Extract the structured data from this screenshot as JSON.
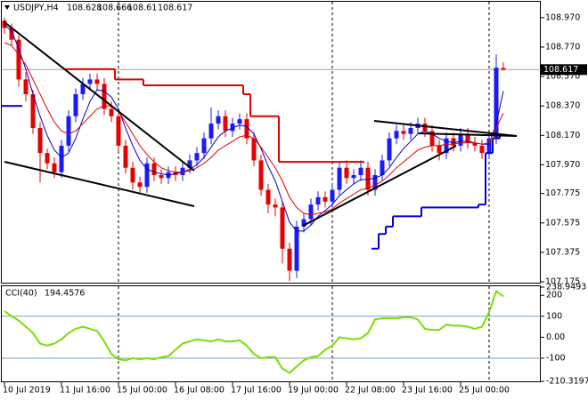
{
  "chart_data": {
    "type": "candlestick",
    "symbol": "USDJPY,H4",
    "categories": [
      "10 Jul 2019",
      null,
      null,
      null,
      null,
      null,
      null,
      null,
      "11 Jul 16:00",
      null,
      null,
      null,
      null,
      null,
      null,
      null,
      "15 Jul 00:00",
      null,
      null,
      null,
      null,
      null,
      null,
      null,
      "16 Jul 08:00",
      null,
      null,
      null,
      null,
      null,
      null,
      null,
      "17 Jul 16:00",
      null,
      null,
      null,
      null,
      null,
      null,
      null,
      "19 Jul 00:00",
      null,
      null,
      null,
      null,
      null,
      null,
      null,
      "22 Jul 08:00",
      null,
      null,
      null,
      null,
      null,
      null,
      null,
      "23 Jul 16:00",
      null,
      null,
      null,
      null,
      null,
      null,
      null,
      "25 Jul 00:00",
      null,
      null,
      null,
      null,
      null,
      null
    ],
    "open": [
      108.95,
      108.9,
      108.82,
      108.55,
      108.45,
      108.22,
      108.05,
      107.98,
      107.92,
      108.1,
      108.3,
      108.45,
      108.52,
      108.55,
      108.52,
      108.35,
      108.3,
      108.1,
      107.95,
      107.85,
      107.82,
      107.98,
      107.9,
      107.88,
      107.92,
      107.9,
      107.95,
      108.0,
      108.05,
      108.15,
      108.25,
      108.3,
      108.2,
      108.25,
      108.28,
      108.15,
      108.0,
      107.8,
      107.7,
      107.68,
      107.4,
      107.25,
      107.55,
      107.6,
      107.7,
      107.75,
      107.72,
      107.8,
      107.95,
      107.88,
      107.9,
      107.95,
      107.8,
      107.9,
      108.0,
      108.15,
      108.2,
      108.18,
      108.22,
      108.25,
      108.2,
      108.1,
      108.05,
      108.15,
      108.1,
      108.18,
      108.12,
      108.1,
      108.05,
      108.15,
      108.628
    ],
    "high": [
      108.97,
      108.93,
      108.85,
      108.6,
      108.48,
      108.26,
      108.08,
      108.02,
      108.14,
      108.34,
      108.49,
      108.56,
      108.59,
      108.59,
      108.56,
      108.4,
      108.34,
      108.14,
      107.99,
      107.89,
      108.02,
      108.02,
      107.94,
      107.96,
      107.96,
      107.99,
      108.04,
      108.09,
      108.19,
      108.36,
      108.34,
      108.34,
      108.29,
      108.32,
      108.32,
      108.19,
      108.04,
      107.84,
      107.74,
      107.72,
      107.44,
      107.59,
      107.64,
      107.74,
      107.79,
      107.79,
      107.84,
      107.99,
      108.0,
      107.94,
      108.0,
      107.99,
      107.94,
      108.04,
      108.19,
      108.24,
      108.24,
      108.26,
      108.29,
      108.29,
      108.24,
      108.14,
      108.19,
      108.19,
      108.22,
      108.22,
      108.16,
      108.14,
      108.19,
      108.72,
      108.666
    ],
    "low": [
      108.86,
      108.78,
      108.5,
      108.4,
      108.18,
      107.85,
      107.94,
      107.88,
      107.88,
      108.06,
      108.26,
      108.41,
      108.48,
      108.48,
      108.31,
      108.26,
      108.06,
      107.91,
      107.8,
      107.78,
      107.78,
      107.86,
      107.84,
      107.84,
      107.86,
      107.86,
      107.91,
      107.96,
      108.01,
      108.11,
      108.21,
      108.16,
      108.16,
      108.21,
      108.11,
      107.96,
      107.76,
      107.64,
      107.62,
      107.3,
      107.18,
      107.2,
      107.51,
      107.56,
      107.66,
      107.68,
      107.68,
      107.76,
      107.84,
      107.84,
      107.86,
      107.76,
      107.76,
      107.86,
      107.96,
      108.11,
      108.14,
      108.14,
      108.18,
      108.16,
      108.06,
      108.0,
      108.01,
      108.06,
      108.06,
      108.08,
      108.06,
      108.01,
      108.01,
      108.11,
      108.61
    ],
    "close": [
      108.9,
      108.82,
      108.55,
      108.45,
      108.22,
      108.05,
      107.98,
      107.92,
      108.1,
      108.3,
      108.45,
      108.52,
      108.55,
      108.52,
      108.35,
      108.3,
      108.1,
      107.95,
      107.85,
      107.82,
      107.98,
      107.9,
      107.88,
      107.92,
      107.9,
      107.95,
      108.0,
      108.05,
      108.15,
      108.25,
      108.3,
      108.2,
      108.25,
      108.28,
      108.15,
      108.0,
      107.8,
      107.7,
      107.68,
      107.4,
      107.25,
      107.55,
      107.6,
      107.7,
      107.75,
      107.72,
      107.8,
      107.95,
      107.88,
      107.9,
      107.95,
      107.8,
      107.9,
      108.0,
      108.15,
      108.2,
      108.18,
      108.22,
      108.25,
      108.2,
      108.1,
      108.05,
      108.15,
      108.1,
      108.18,
      108.12,
      108.1,
      108.05,
      108.15,
      108.63,
      108.617
    ],
    "up_color": "#1a1aff",
    "down_color": "#e60000",
    "ylim": [
      107.169,
      109.09
    ],
    "yticks": [
      {
        "value": 108.97,
        "label": "108.970"
      },
      {
        "value": 108.77,
        "label": "108.770"
      },
      {
        "value": 108.57,
        "label": "108.570"
      },
      {
        "value": 108.37,
        "label": "108.370"
      },
      {
        "value": 108.17,
        "label": "108.170"
      },
      {
        "value": 107.97,
        "label": "107.970"
      },
      {
        "value": 107.775,
        "label": "107.775"
      },
      {
        "value": 107.575,
        "label": "107.575"
      },
      {
        "value": 107.375,
        "label": "107.375"
      },
      {
        "value": 107.175,
        "label": "107.175"
      }
    ],
    "lines": [
      {
        "style": "line",
        "color": "#0000cc",
        "values": [
          108.92,
          108.88,
          108.76,
          108.62,
          108.45,
          108.3,
          108.17,
          108.07,
          108.02,
          108.05,
          108.15,
          108.28,
          108.4,
          108.48,
          108.47,
          108.43,
          108.35,
          108.22,
          108.1,
          108.0,
          107.94,
          107.92,
          107.91,
          107.9,
          107.91,
          107.92,
          107.94,
          107.97,
          108.02,
          108.09,
          108.16,
          108.2,
          108.22,
          108.24,
          108.23,
          108.18,
          108.08,
          107.96,
          107.86,
          107.72,
          107.58,
          107.52,
          107.52,
          107.56,
          107.62,
          107.66,
          107.7,
          107.76,
          107.8,
          107.84,
          107.87,
          107.87,
          107.88,
          107.9,
          107.95,
          108.02,
          108.08,
          108.13,
          108.18,
          108.2,
          108.18,
          108.15,
          108.13,
          108.12,
          108.13,
          108.13,
          108.12,
          108.11,
          108.11,
          108.25,
          108.47
        ]
      },
      {
        "style": "line",
        "color": "#e00000",
        "values": [
          108.8,
          108.78,
          108.72,
          108.65,
          108.55,
          108.45,
          108.35,
          108.26,
          108.2,
          108.18,
          108.2,
          108.25,
          108.3,
          108.35,
          108.37,
          108.37,
          108.33,
          108.26,
          108.18,
          108.1,
          108.04,
          107.99,
          107.95,
          107.93,
          107.92,
          107.92,
          107.93,
          107.95,
          107.98,
          108.02,
          108.07,
          108.1,
          108.13,
          108.16,
          108.17,
          108.15,
          108.09,
          108.02,
          107.95,
          107.86,
          107.75,
          107.68,
          107.64,
          107.63,
          107.64,
          107.65,
          107.67,
          107.71,
          107.74,
          107.77,
          107.8,
          107.81,
          107.83,
          107.86,
          107.9,
          107.95,
          107.99,
          108.03,
          108.07,
          108.09,
          108.1,
          108.1,
          108.11,
          108.11,
          108.12,
          108.12,
          108.12,
          108.11,
          108.12,
          108.22,
          108.32
        ]
      },
      {
        "style": "step",
        "color": "#e00000",
        "values": [
          null,
          null,
          null,
          null,
          null,
          null,
          null,
          null,
          null,
          108.62,
          108.62,
          108.62,
          108.62,
          108.62,
          108.62,
          108.62,
          108.55,
          108.55,
          108.55,
          108.55,
          108.51,
          108.51,
          108.51,
          108.51,
          108.51,
          108.51,
          108.51,
          108.51,
          108.51,
          108.51,
          108.51,
          108.51,
          108.51,
          108.51,
          108.45,
          108.3,
          108.3,
          108.3,
          108.3,
          107.99,
          107.99,
          107.99,
          107.99,
          107.99,
          107.99,
          107.99,
          107.99,
          107.99,
          107.99,
          107.99,
          107.99,
          null,
          null,
          null,
          null,
          null,
          null,
          null,
          null,
          null,
          null,
          null,
          null,
          null,
          null,
          null,
          null,
          null,
          null,
          null,
          null
        ]
      },
      {
        "style": "step",
        "color": "#0000dd",
        "values": [
          108.37,
          108.37,
          108.37,
          null,
          null,
          null,
          null,
          null,
          null,
          null,
          null,
          null,
          null,
          null,
          null,
          null,
          null,
          null,
          null,
          null,
          null,
          null,
          null,
          null,
          null,
          null,
          null,
          null,
          null,
          null,
          null,
          null,
          null,
          null,
          null,
          null,
          null,
          null,
          null,
          null,
          null,
          null,
          null,
          null,
          null,
          null,
          null,
          null,
          null,
          null,
          null,
          null,
          107.4,
          107.5,
          107.55,
          107.62,
          107.62,
          107.62,
          107.62,
          107.68,
          107.68,
          107.68,
          107.68,
          107.68,
          107.68,
          107.68,
          107.68,
          107.7,
          108.05,
          108.15,
          108.17
        ]
      }
    ],
    "cci": {
      "label": "CCI(40)",
      "color": "#77e000",
      "values": [
        125,
        100,
        80,
        50,
        20,
        -30,
        -40,
        -30,
        -10,
        20,
        40,
        50,
        40,
        30,
        -20,
        -80,
        -105,
        -110,
        -100,
        -105,
        -100,
        -105,
        -95,
        -90,
        -60,
        -30,
        -20,
        -10,
        -15,
        -20,
        -10,
        -20,
        -20,
        -15,
        -40,
        -80,
        -100,
        -95,
        -95,
        -150,
        -170,
        -140,
        -110,
        -95,
        -90,
        -60,
        -40,
        0,
        -5,
        -10,
        -5,
        20,
        85,
        90,
        90,
        90,
        95,
        95,
        85,
        40,
        35,
        35,
        60,
        55,
        55,
        50,
        40,
        50,
        120,
        220,
        194.4576
      ],
      "ylim": [
        -210.3197,
        238.9493
      ],
      "yticks": [
        238.9493,
        200,
        100,
        {
          "value": 0,
          "label": "0.00"
        },
        -100,
        -210.3197
      ],
      "levels": [
        100,
        -100
      ]
    }
  }
}
